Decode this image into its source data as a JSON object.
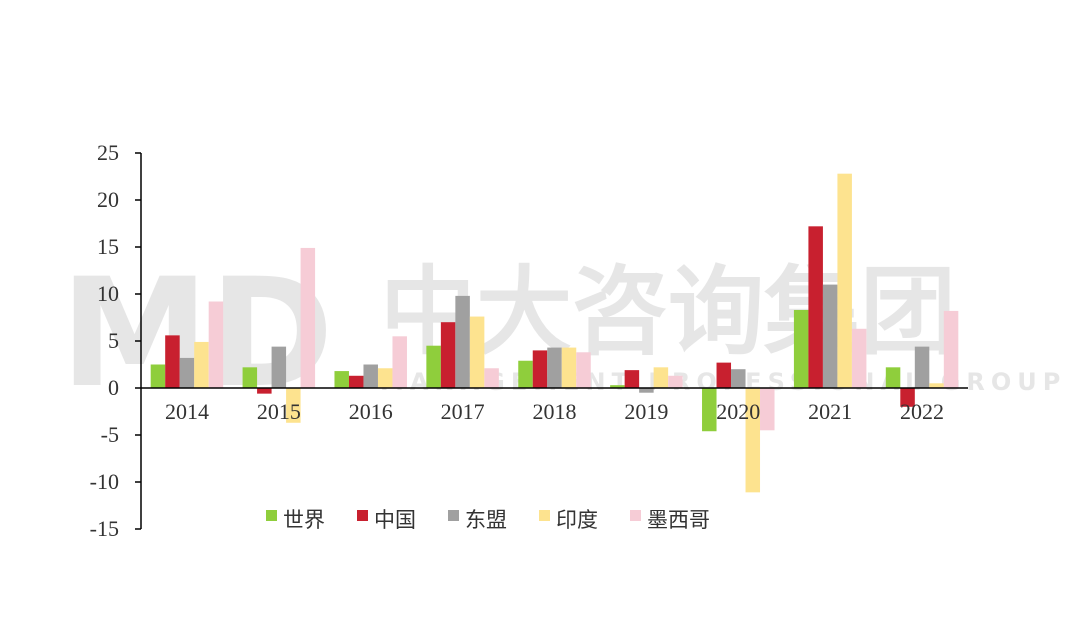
{
  "watermark": {
    "logo_text": "MD",
    "brand_text": "中大咨询集团",
    "brand_subtext": "MANAGEMENT PROFESSIONAL GROUP"
  },
  "colors": {
    "世界": "#8fce3c",
    "中国": "#c8202f",
    "东盟": "#a0a0a0",
    "印度": "#fde38f",
    "墨西哥": "#f6ccd6",
    "axis": "#000000"
  },
  "chart_data": {
    "type": "bar",
    "title": "",
    "xlabel": "",
    "ylabel": "",
    "categories": [
      "2014",
      "2015",
      "2016",
      "2017",
      "2018",
      "2019",
      "2020",
      "2021",
      "2022"
    ],
    "ylim": [
      -15,
      25
    ],
    "yticks": [
      25,
      20,
      15,
      10,
      5,
      0,
      -5,
      -10,
      -15
    ],
    "ytick_labels": [
      "25",
      "20",
      "15",
      "10",
      "5",
      "0",
      "-5",
      "-10",
      "-15"
    ],
    "grid": false,
    "legend_position": "bottom",
    "series": [
      {
        "name": "世界",
        "values": [
          2.5,
          2.2,
          1.8,
          4.5,
          2.9,
          0.3,
          -4.6,
          8.3,
          2.2
        ]
      },
      {
        "name": "中国",
        "values": [
          5.6,
          -0.6,
          1.3,
          7.0,
          4.0,
          1.9,
          2.7,
          17.2,
          -2.0
        ]
      },
      {
        "name": "东盟",
        "values": [
          3.2,
          4.4,
          2.5,
          9.8,
          4.3,
          -0.5,
          2.0,
          11.0,
          4.4
        ]
      },
      {
        "name": "印度",
        "values": [
          4.9,
          -3.7,
          2.1,
          7.6,
          4.3,
          2.2,
          -11.1,
          22.8,
          0.5
        ]
      },
      {
        "name": "墨西哥",
        "values": [
          9.2,
          14.9,
          5.5,
          2.1,
          3.8,
          1.3,
          -4.5,
          6.3,
          8.2
        ]
      }
    ]
  }
}
